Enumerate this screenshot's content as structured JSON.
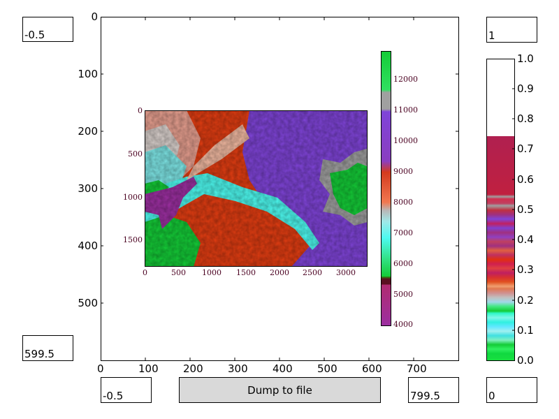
{
  "fields": {
    "ymin": "-0.5",
    "ymax": "599.5",
    "xmin": "-0.5",
    "xmax": "799.5",
    "cmax": "1",
    "cmin": "0"
  },
  "dump_button_label": "Dump to file",
  "main_axes": {
    "yticks": [
      "0",
      "100",
      "200",
      "300",
      "400",
      "500"
    ],
    "xticks": [
      "0",
      "100",
      "200",
      "300",
      "400",
      "500",
      "600",
      "700"
    ]
  },
  "inset_map": {
    "yticks": [
      "0",
      "500",
      "1000",
      "1500"
    ],
    "xticks": [
      "0",
      "500",
      "1000",
      "1500",
      "2000",
      "2500",
      "3000"
    ],
    "colorbar_ticks": [
      "12000",
      "11000",
      "10000",
      "9000",
      "8000",
      "7000",
      "6000",
      "5000",
      "4000"
    ],
    "label_color": "#4a0020"
  },
  "colorbar": {
    "ticks": [
      "1.0",
      "0.9",
      "0.8",
      "0.7",
      "0.6",
      "0.5",
      "0.4",
      "0.3",
      "0.2",
      "0.1",
      "0.0"
    ],
    "fill_fraction": 0.745
  },
  "colors": {
    "button_bg": "#d9d9d9",
    "terrain_purple": "#7f44d8",
    "terrain_red": "#e23d12",
    "terrain_cyan": "#4dfaf0",
    "terrain_green": "#14cc37",
    "terrain_grey": "#a0a0a0",
    "terrain_magenta": "#9c2fa1"
  }
}
